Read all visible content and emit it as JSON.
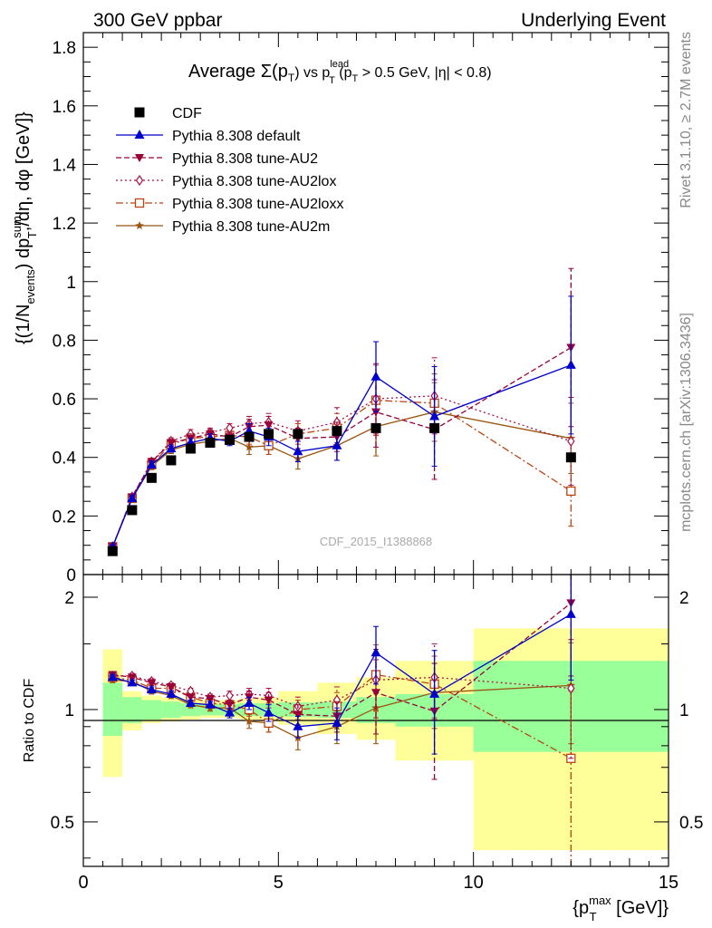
{
  "header": {
    "left": "300 GeV ppbar",
    "right": "Underlying Event"
  },
  "side_labels": {
    "rivet": "Rivet 3.1.10, ≥ 2.7M events",
    "mcplots": "mcplots.cern.ch [arXiv:1306.3436]"
  },
  "colors": {
    "cdf": "#000000",
    "default": "#0000cc",
    "au2": "#99003a",
    "au2lox": "#aa1144",
    "au2loxx": "#bb4411",
    "au2m": "#995511",
    "band_inner": "#99ff99",
    "band_outer": "#ffff99"
  },
  "chart_data": [
    {
      "id": "main",
      "type": "scatter",
      "title_parts": {
        "pre": "Average ",
        "sigma": "Σ(p",
        "t_sub": "T",
        "mid": ") vs p",
        "lead_sup": "lead",
        "lead_sub": "T",
        "post": " (p",
        "cut_sub": "T",
        "cut": " > 0.5 GeV, |η| < 0.8)"
      },
      "ylabel_parts": {
        "a": "{(1/N",
        "events_sub": "events",
        "b": ") dp",
        "sum_sup": "sum",
        "t_sub": "T",
        "c": ",/dη, dφ [GeV]}"
      },
      "watermark": "CDF_2015_I1388868",
      "xlim": [
        0,
        15
      ],
      "ylim": [
        0,
        1.85
      ],
      "yticks": [
        0,
        0.2,
        0.4,
        0.6,
        0.8,
        1,
        1.2,
        1.4,
        1.6,
        1.8
      ],
      "ytick_labels": [
        "0",
        "0.2",
        "0.4",
        "0.6",
        "0.8",
        "1",
        "1.2",
        "1.4",
        "1.6",
        "1.8"
      ],
      "x": [
        0.75,
        1.25,
        1.75,
        2.25,
        2.75,
        3.25,
        3.75,
        4.25,
        4.75,
        5.5,
        6.5,
        7.5,
        9.0,
        12.5
      ],
      "legend_position": "top-left",
      "series": [
        {
          "key": "cdf",
          "name": "CDF",
          "marker": "filled-square",
          "line": "none",
          "values": [
            0.08,
            0.22,
            0.33,
            0.39,
            0.43,
            0.45,
            0.46,
            0.47,
            0.48,
            0.48,
            0.49,
            0.5,
            0.5,
            0.4
          ],
          "errors": [
            0.005,
            0.008,
            0.01,
            0.01,
            0.01,
            0.01,
            0.01,
            0.015,
            0.015,
            0.02,
            0.025,
            0.03,
            0.03,
            0.03
          ]
        },
        {
          "key": "default",
          "name": "Pythia 8.308 default",
          "marker": "filled-triangle-up",
          "line": "solid",
          "values": [
            0.095,
            0.26,
            0.375,
            0.43,
            0.45,
            0.465,
            0.455,
            0.49,
            0.47,
            0.42,
            0.44,
            0.675,
            0.54,
            0.715
          ],
          "errors": [
            0.005,
            0.01,
            0.012,
            0.012,
            0.015,
            0.015,
            0.015,
            0.025,
            0.03,
            0.035,
            0.05,
            0.12,
            0.17,
            0.235
          ]
        },
        {
          "key": "au2",
          "name": "Pythia 8.308 tune-AU2",
          "marker": "filled-triangle-down",
          "line": "dashed",
          "values": [
            0.095,
            0.265,
            0.385,
            0.45,
            0.465,
            0.48,
            0.47,
            0.505,
            0.51,
            0.465,
            0.47,
            0.555,
            0.495,
            0.775
          ],
          "errors": [
            0.005,
            0.01,
            0.012,
            0.012,
            0.015,
            0.015,
            0.015,
            0.025,
            0.03,
            0.035,
            0.05,
            0.12,
            0.17,
            0.27
          ]
        },
        {
          "key": "au2lox",
          "name": "Pythia 8.308 tune-AU2lox",
          "marker": "open-diamond",
          "line": "dotted",
          "values": [
            0.095,
            0.265,
            0.385,
            0.455,
            0.48,
            0.485,
            0.5,
            0.515,
            0.52,
            0.49,
            0.52,
            0.6,
            0.61,
            0.455
          ],
          "errors": [
            0.005,
            0.01,
            0.012,
            0.012,
            0.015,
            0.015,
            0.015,
            0.025,
            0.03,
            0.035,
            0.05,
            0.12,
            0.13,
            0.15
          ]
        },
        {
          "key": "au2loxx",
          "name": "Pythia 8.308 tune-AU2loxx",
          "marker": "open-square",
          "line": "dashdot",
          "values": [
            0.095,
            0.26,
            0.375,
            0.445,
            0.465,
            0.47,
            0.475,
            0.47,
            0.44,
            0.48,
            0.5,
            0.595,
            0.585,
            0.285
          ],
          "errors": [
            0.005,
            0.01,
            0.012,
            0.012,
            0.015,
            0.015,
            0.015,
            0.025,
            0.03,
            0.035,
            0.05,
            0.12,
            0.1,
            0.12
          ]
        },
        {
          "key": "au2m",
          "name": "Pythia 8.308 tune-AU2m",
          "marker": "star",
          "line": "solid",
          "values": [
            0.095,
            0.26,
            0.37,
            0.425,
            0.445,
            0.455,
            0.465,
            0.435,
            0.44,
            0.395,
            0.44,
            0.505,
            0.555,
            0.465
          ],
          "errors": [
            0.005,
            0.01,
            0.012,
            0.012,
            0.015,
            0.015,
            0.015,
            0.025,
            0.03,
            0.035,
            0.05,
            0.1,
            0.1,
            0.12
          ]
        }
      ]
    },
    {
      "id": "ratio",
      "type": "scatter",
      "ylabel": "Ratio to CDF",
      "xlabel_parts": {
        "a": "{p",
        "max_sup": "max",
        "t_sub": "T",
        "b": " [GeV]}"
      },
      "xlim": [
        0,
        15
      ],
      "ylim": [
        0.38,
        2.3
      ],
      "log_y": true,
      "xticks": [
        0,
        5,
        10,
        15
      ],
      "xtick_labels": [
        "0",
        "5",
        "10",
        "15"
      ],
      "yticks": [
        0.5,
        1,
        2
      ],
      "ytick_labels": [
        "0.5",
        "1",
        "2"
      ],
      "bins": [
        [
          0.5,
          1.0
        ],
        [
          1.0,
          1.5
        ],
        [
          1.5,
          2.0
        ],
        [
          2.0,
          2.5
        ],
        [
          2.5,
          3.0
        ],
        [
          3.0,
          3.5
        ],
        [
          3.5,
          4.0
        ],
        [
          4.0,
          4.5
        ],
        [
          4.5,
          5.0
        ],
        [
          5.0,
          6.0
        ],
        [
          6.0,
          7.0
        ],
        [
          7.0,
          8.0
        ],
        [
          8.0,
          10.0
        ],
        [
          10.0,
          15.0
        ]
      ],
      "band_inner": [
        [
          0.85,
          1.18
        ],
        [
          0.92,
          1.08
        ],
        [
          0.94,
          1.06
        ],
        [
          0.95,
          1.05
        ],
        [
          0.96,
          1.04
        ],
        [
          0.965,
          1.035
        ],
        [
          0.965,
          1.035
        ],
        [
          0.96,
          1.04
        ],
        [
          0.96,
          1.04
        ],
        [
          0.955,
          1.045
        ],
        [
          0.95,
          1.05
        ],
        [
          0.92,
          1.08
        ],
        [
          0.9,
          1.1
        ],
        [
          0.77,
          1.35
        ]
      ],
      "band_outer": [
        [
          0.66,
          1.45
        ],
        [
          0.88,
          1.12
        ],
        [
          0.92,
          1.09
        ],
        [
          0.93,
          1.08
        ],
        [
          0.94,
          1.07
        ],
        [
          0.95,
          1.06
        ],
        [
          0.95,
          1.06
        ],
        [
          0.94,
          1.07
        ],
        [
          0.93,
          1.08
        ],
        [
          0.91,
          1.12
        ],
        [
          0.86,
          1.18
        ],
        [
          0.83,
          1.22
        ],
        [
          0.73,
          1.35
        ],
        [
          0.42,
          1.65
        ]
      ],
      "series": [
        {
          "key": "default",
          "values": [
            1.22,
            1.18,
            1.13,
            1.1,
            1.04,
            1.03,
            0.98,
            1.04,
            0.98,
            0.9,
            0.92,
            1.42,
            1.1,
            1.8
          ],
          "errors": [
            0.02,
            0.02,
            0.02,
            0.02,
            0.02,
            0.02,
            0.03,
            0.04,
            0.05,
            0.06,
            0.09,
            0.25,
            0.34,
            0.6
          ]
        },
        {
          "key": "au2",
          "values": [
            1.24,
            1.22,
            1.18,
            1.15,
            1.08,
            1.07,
            1.03,
            1.08,
            1.06,
            0.97,
            0.96,
            1.11,
            0.99,
            1.93
          ],
          "errors": [
            0.02,
            0.02,
            0.02,
            0.02,
            0.02,
            0.02,
            0.03,
            0.04,
            0.05,
            0.06,
            0.09,
            0.25,
            0.34,
            0.7
          ]
        },
        {
          "key": "au2lox",
          "values": [
            1.23,
            1.23,
            1.19,
            1.16,
            1.12,
            1.08,
            1.09,
            1.1,
            1.09,
            1.02,
            1.06,
            1.2,
            1.22,
            1.14
          ],
          "errors": [
            0.02,
            0.02,
            0.02,
            0.02,
            0.02,
            0.02,
            0.03,
            0.04,
            0.05,
            0.06,
            0.09,
            0.25,
            0.28,
            0.4
          ]
        },
        {
          "key": "au2loxx",
          "values": [
            1.22,
            1.2,
            1.14,
            1.14,
            1.08,
            1.04,
            1.03,
            1.0,
            0.92,
            1.0,
            1.02,
            1.24,
            1.17,
            0.74
          ],
          "errors": [
            0.02,
            0.02,
            0.02,
            0.02,
            0.02,
            0.02,
            0.03,
            0.04,
            0.05,
            0.06,
            0.09,
            0.25,
            0.22,
            0.38
          ]
        },
        {
          "key": "au2m",
          "values": [
            1.2,
            1.19,
            1.12,
            1.09,
            1.03,
            1.01,
            1.01,
            0.93,
            0.92,
            0.84,
            0.9,
            1.01,
            1.11,
            1.16
          ],
          "errors": [
            0.02,
            0.02,
            0.02,
            0.02,
            0.02,
            0.02,
            0.03,
            0.04,
            0.05,
            0.06,
            0.09,
            0.2,
            0.22,
            0.35
          ]
        }
      ]
    }
  ]
}
